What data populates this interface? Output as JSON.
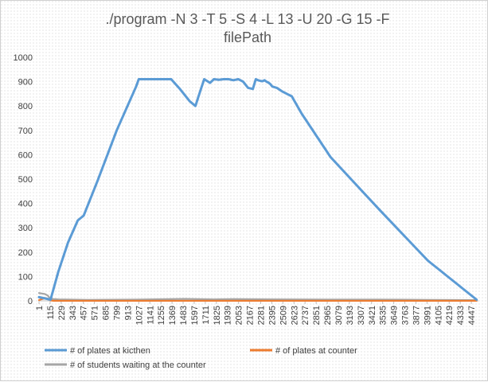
{
  "chart_data": {
    "type": "line",
    "title_lines": [
      "./program -N 3 -T 5 -S 4 -L 13 -U 20 -G 15 -F",
      "filePath"
    ],
    "xlabel": "",
    "ylabel": "",
    "ylim": [
      0,
      1000
    ],
    "yticks": [
      0,
      100,
      200,
      300,
      400,
      500,
      600,
      700,
      800,
      900,
      1000
    ],
    "xlim": [
      1,
      4520
    ],
    "xticks": [
      "1",
      "115",
      "229",
      "343",
      "457",
      "571",
      "685",
      "799",
      "913",
      "1027",
      "1141",
      "1255",
      "1369",
      "1483",
      "1597",
      "1711",
      "1825",
      "1939",
      "2053",
      "2167",
      "2281",
      "2395",
      "2509",
      "2623",
      "2737",
      "2851",
      "2965",
      "3079",
      "3193",
      "3307",
      "3421",
      "3535",
      "3649",
      "3763",
      "3877",
      "3991",
      "4105",
      "4219",
      "4333",
      "4447"
    ],
    "grid": false,
    "legend_position": "bottom",
    "colors": {
      "kitchen": "#5b9bd5",
      "counter": "#ed7d31",
      "students": "#a5a5a5"
    },
    "series": [
      {
        "name": "# of plates at kicthen",
        "x": [
          1,
          60,
          120,
          200,
          300,
          400,
          460,
          600,
          800,
          1000,
          1027,
          1100,
          1200,
          1300,
          1360,
          1450,
          1550,
          1610,
          1650,
          1700,
          1760,
          1800,
          1850,
          1900,
          1950,
          2000,
          2050,
          2100,
          2150,
          2200,
          2230,
          2260,
          2280,
          2300,
          2320,
          2340,
          2360,
          2380,
          2400,
          2450,
          2500,
          2550,
          2600,
          2700,
          3000,
          3500,
          4000,
          4500
        ],
        "y": [
          15,
          10,
          5,
          120,
          240,
          330,
          350,
          490,
          700,
          880,
          910,
          910,
          910,
          910,
          910,
          870,
          820,
          800,
          850,
          910,
          895,
          910,
          908,
          910,
          910,
          906,
          910,
          900,
          875,
          870,
          910,
          905,
          903,
          902,
          906,
          900,
          896,
          890,
          880,
          874,
          860,
          850,
          840,
          770,
          590,
          375,
          165,
          5
        ]
      },
      {
        "name": "# of plates at counter",
        "x": [
          1,
          20,
          40,
          60,
          80,
          100,
          120,
          150,
          300,
          500,
          1000,
          2000,
          3000,
          4000,
          4500
        ],
        "y": [
          3,
          6,
          8,
          12,
          10,
          6,
          2,
          0,
          0,
          0,
          0,
          0,
          0,
          0,
          0
        ]
      },
      {
        "name": " # of students waiting at the counter",
        "x": [
          1,
          30,
          60,
          90,
          120,
          200,
          500,
          1000,
          1500,
          1800,
          2000,
          2400,
          3000,
          3500,
          4000,
          4500
        ],
        "y": [
          32,
          30,
          28,
          22,
          8,
          6,
          4,
          5,
          8,
          6,
          7,
          6,
          5,
          5,
          4,
          3
        ]
      }
    ]
  }
}
